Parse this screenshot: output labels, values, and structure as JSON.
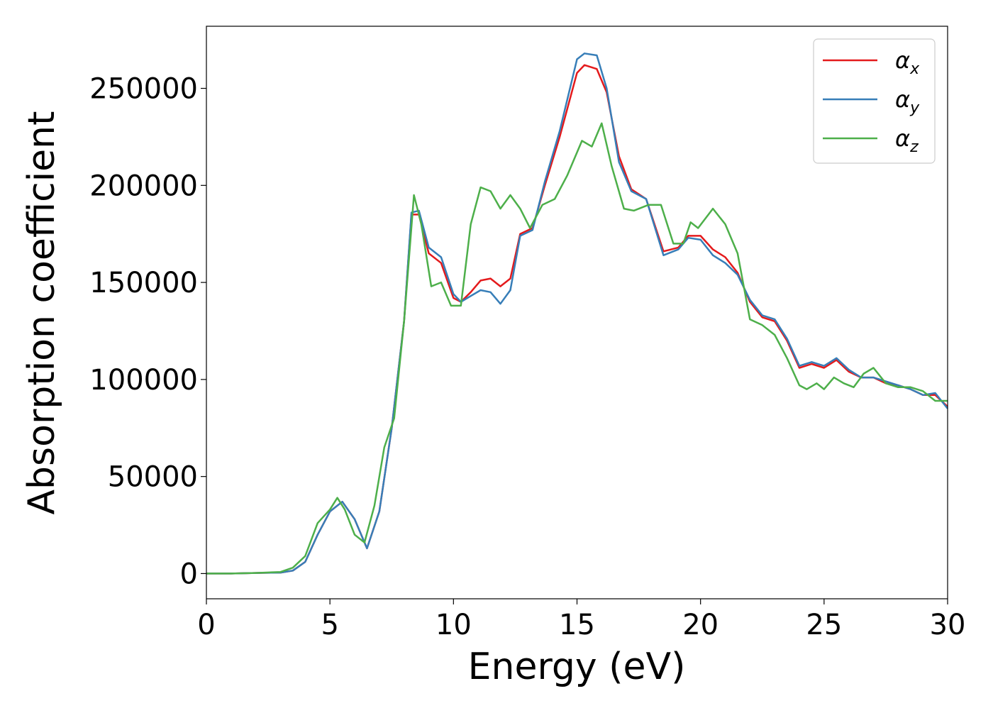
{
  "chart_data": {
    "type": "line",
    "title": "",
    "xlabel": "Energy (eV)",
    "ylabel": "Absorption coefficient",
    "xlim": [
      0,
      30
    ],
    "ylim": [
      -13000,
      282000
    ],
    "xticks": [
      0,
      5,
      10,
      15,
      20,
      25,
      30
    ],
    "yticks": [
      0,
      50000,
      100000,
      150000,
      200000,
      250000
    ],
    "grid": false,
    "legend_position": "top-right",
    "series": [
      {
        "name": "α",
        "subscript": "x",
        "color": "#e41a1c",
        "x": [
          0,
          1,
          2,
          3,
          3.5,
          4,
          4.5,
          5,
          5.5,
          6,
          6.5,
          7,
          7.5,
          8,
          8.3,
          8.6,
          9,
          9.5,
          10,
          10.3,
          10.7,
          11.1,
          11.5,
          11.9,
          12.3,
          12.7,
          13.2,
          13.7,
          14.3,
          15,
          15.3,
          15.8,
          16.2,
          16.7,
          17.2,
          17.8,
          18.5,
          19.1,
          19.5,
          20,
          20.5,
          21,
          21.5,
          22,
          22.5,
          23,
          23.5,
          24,
          24.5,
          25,
          25.5,
          26,
          26.5,
          27,
          27.5,
          28,
          28.5,
          29,
          29.5,
          30
        ],
        "y": [
          0,
          0,
          300,
          500,
          1500,
          6000,
          20000,
          32000,
          37000,
          28000,
          13000,
          32000,
          75000,
          130000,
          185000,
          185000,
          165000,
          160000,
          142000,
          140000,
          145000,
          151000,
          152000,
          148000,
          152000,
          175000,
          178000,
          200000,
          225000,
          258000,
          262000,
          260000,
          248000,
          215000,
          198000,
          193000,
          166000,
          168000,
          174000,
          174000,
          167000,
          163000,
          155000,
          140000,
          132000,
          130000,
          120000,
          106000,
          108000,
          106000,
          110000,
          104000,
          101000,
          101000,
          98000,
          97000,
          95000,
          92000,
          92000,
          86000
        ]
      },
      {
        "name": "α",
        "subscript": "y",
        "color": "#377eb8",
        "x": [
          0,
          1,
          2,
          3,
          3.5,
          4,
          4.5,
          5,
          5.5,
          6,
          6.5,
          7,
          7.5,
          8,
          8.3,
          8.6,
          9,
          9.5,
          10,
          10.3,
          10.7,
          11.1,
          11.5,
          11.9,
          12.3,
          12.7,
          13.2,
          13.7,
          14.3,
          15,
          15.3,
          15.8,
          16.2,
          16.7,
          17.2,
          17.8,
          18.5,
          19.1,
          19.5,
          20,
          20.5,
          21,
          21.5,
          22,
          22.5,
          23,
          23.5,
          24,
          24.5,
          25,
          25.5,
          26,
          26.5,
          27,
          27.5,
          28,
          28.5,
          29,
          29.5,
          30
        ],
        "y": [
          0,
          0,
          300,
          500,
          1500,
          6000,
          20000,
          32000,
          37000,
          28000,
          13000,
          32000,
          75000,
          130000,
          186000,
          187000,
          168000,
          163000,
          144000,
          140000,
          143000,
          146000,
          145000,
          139000,
          146000,
          174000,
          177000,
          202000,
          228000,
          265000,
          268000,
          267000,
          250000,
          212000,
          197000,
          193000,
          164000,
          167000,
          173000,
          172000,
          164000,
          160000,
          154000,
          141000,
          133000,
          131000,
          121000,
          107000,
          109000,
          107000,
          111000,
          105000,
          101000,
          101000,
          99000,
          97000,
          95000,
          92000,
          93000,
          85000
        ]
      },
      {
        "name": "α",
        "subscript": "z",
        "color": "#4daf4a",
        "x": [
          0,
          1,
          2,
          3,
          3.5,
          4,
          4.5,
          5,
          5.3,
          5.6,
          6,
          6.4,
          6.8,
          7.2,
          7.6,
          8,
          8.4,
          8.7,
          9.1,
          9.5,
          9.9,
          10.3,
          10.7,
          11.1,
          11.5,
          11.9,
          12.3,
          12.7,
          13.1,
          13.6,
          14.1,
          14.6,
          15.2,
          15.6,
          16,
          16.4,
          16.9,
          17.3,
          17.9,
          18.4,
          18.9,
          19.3,
          19.6,
          19.9,
          20.5,
          21,
          21.5,
          22,
          22.5,
          23,
          23.5,
          24,
          24.3,
          24.7,
          25,
          25.4,
          25.8,
          26.2,
          26.6,
          27,
          27.5,
          28,
          28.5,
          29,
          29.5,
          30
        ],
        "y": [
          0,
          0,
          300,
          800,
          3000,
          9000,
          26000,
          33000,
          39000,
          33000,
          20000,
          16000,
          35000,
          65000,
          80000,
          130000,
          195000,
          180000,
          148000,
          150000,
          138000,
          138000,
          180000,
          199000,
          197000,
          188000,
          195000,
          188000,
          178000,
          190000,
          193000,
          205000,
          223000,
          220000,
          232000,
          210000,
          188000,
          187000,
          190000,
          190000,
          170000,
          170000,
          181000,
          178000,
          188000,
          180000,
          165000,
          131000,
          128000,
          123000,
          111000,
          97000,
          95000,
          98000,
          95000,
          101000,
          98000,
          96000,
          103000,
          106000,
          98000,
          96000,
          96000,
          94000,
          89000,
          89000
        ]
      }
    ]
  }
}
